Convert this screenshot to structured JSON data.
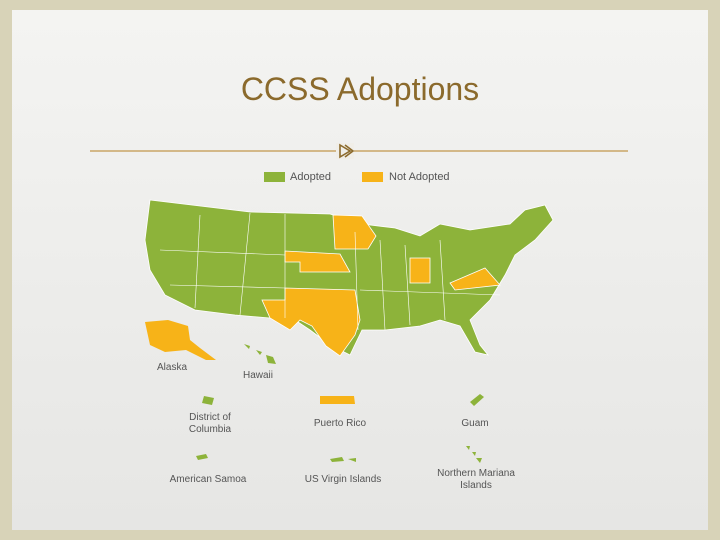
{
  "header": {
    "title": "CCSS Adoptions"
  },
  "legend": {
    "items": [
      {
        "label": "Adopted",
        "color": "#8db33a"
      },
      {
        "label": "Not Adopted",
        "color": "#f7b318"
      }
    ]
  },
  "map": {
    "places": [
      {
        "label_lines": [
          "Alaska"
        ]
      },
      {
        "label_lines": [
          "Hawaii"
        ]
      },
      {
        "label_lines": [
          "District of",
          "Columbia"
        ]
      },
      {
        "label_lines": [
          "Puerto Rico"
        ]
      },
      {
        "label_lines": [
          "Guam"
        ]
      },
      {
        "label_lines": [
          "American Samoa"
        ]
      },
      {
        "label_lines": [
          "US Virgin Islands"
        ]
      },
      {
        "label_lines": [
          "Northern Mariana",
          "Islands"
        ]
      }
    ]
  }
}
